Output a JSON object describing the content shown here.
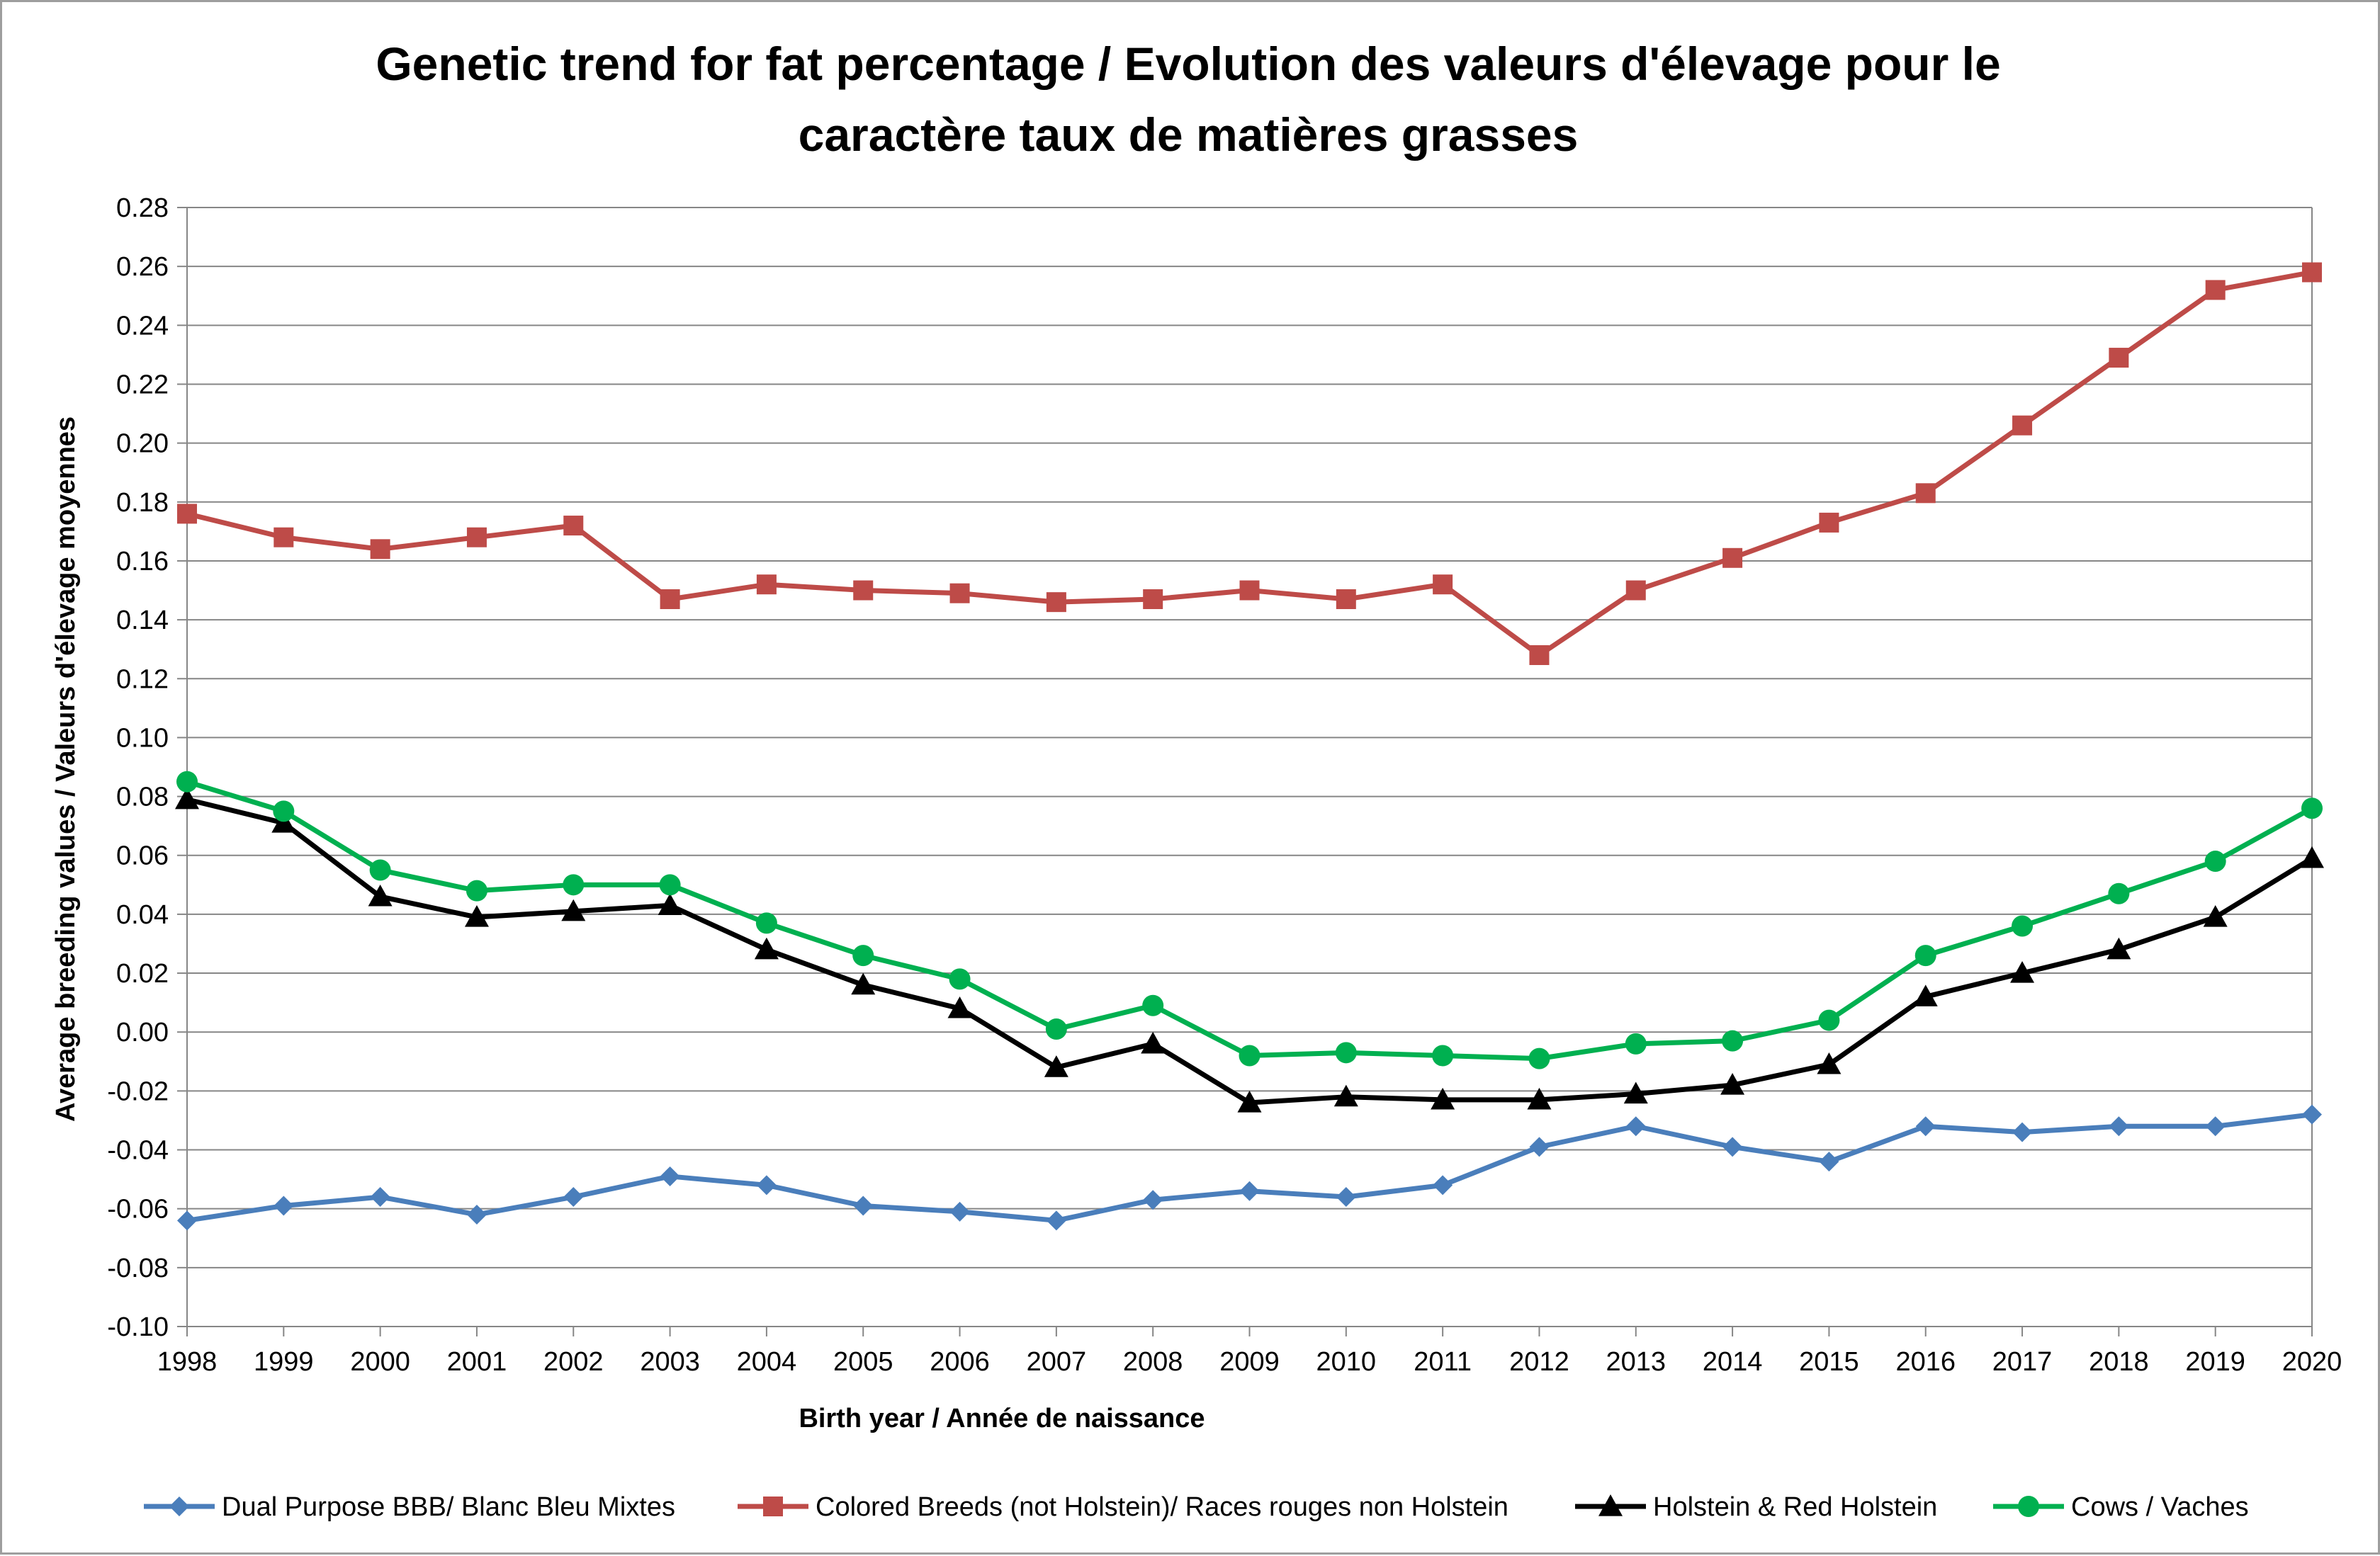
{
  "chart_data": {
    "type": "line",
    "title_lines": [
      "Genetic trend for fat percentage / Evolution des valeurs d'élevage pour le",
      "caractère taux de matières grasses"
    ],
    "xlabel": "Birth year / Année de naissance",
    "ylabel": "Average breeding values  / Valeurs d'élevage moyennes",
    "x": [
      "1998",
      "1999",
      "2000",
      "2001",
      "2002",
      "2003",
      "2004",
      "2005",
      "2006",
      "2007",
      "2008",
      "2009",
      "2010",
      "2011",
      "2012",
      "2013",
      "2014",
      "2015",
      "2016",
      "2017",
      "2018",
      "2019",
      "2020"
    ],
    "ylim": [
      -0.1,
      0.28
    ],
    "ytick_step": 0.02,
    "ytick_labels": [
      "-0.10",
      "-0.08",
      "-0.06",
      "-0.04",
      "-0.02",
      "0.00",
      "0.02",
      "0.04",
      "0.06",
      "0.08",
      "0.10",
      "0.12",
      "0.14",
      "0.16",
      "0.18",
      "0.20",
      "0.22",
      "0.24",
      "0.26",
      "0.28"
    ],
    "grid": true,
    "legend_position": "bottom",
    "series": [
      {
        "name": "Dual Purpose BBB/ Blanc Bleu Mixtes",
        "color": "#4a7ebb",
        "marker": "diamond",
        "values": [
          -0.064,
          -0.059,
          -0.056,
          -0.062,
          -0.056,
          -0.049,
          -0.052,
          -0.059,
          -0.061,
          -0.064,
          -0.057,
          -0.054,
          -0.056,
          -0.052,
          -0.039,
          -0.032,
          -0.039,
          -0.044,
          -0.032,
          -0.034,
          -0.032,
          -0.032,
          -0.028
        ]
      },
      {
        "name": "Colored Breeds (not Holstein)/ Races rouges non Holstein",
        "color": "#be4b48",
        "marker": "square",
        "values": [
          0.176,
          0.168,
          0.164,
          0.168,
          0.172,
          0.147,
          0.152,
          0.15,
          0.149,
          0.146,
          0.147,
          0.15,
          0.147,
          0.152,
          0.128,
          0.15,
          0.161,
          0.173,
          0.183,
          0.206,
          0.229,
          0.252,
          0.258
        ]
      },
      {
        "name": "Holstein & Red Holstein",
        "color": "#000000",
        "marker": "triangle",
        "values": [
          0.079,
          0.071,
          0.046,
          0.039,
          0.041,
          0.043,
          0.028,
          0.016,
          0.008,
          -0.012,
          -0.004,
          -0.024,
          -0.022,
          -0.023,
          -0.023,
          -0.021,
          -0.018,
          -0.011,
          0.012,
          0.02,
          0.028,
          0.039,
          0.059
        ]
      },
      {
        "name": "Cows / Vaches",
        "color": "#00b050",
        "marker": "circle",
        "values": [
          0.085,
          0.075,
          0.055,
          0.048,
          0.05,
          0.05,
          0.037,
          0.026,
          0.018,
          0.001,
          0.009,
          -0.008,
          -0.007,
          -0.008,
          -0.009,
          -0.004,
          -0.003,
          0.004,
          0.026,
          0.036,
          0.047,
          0.058,
          0.076
        ]
      }
    ]
  }
}
